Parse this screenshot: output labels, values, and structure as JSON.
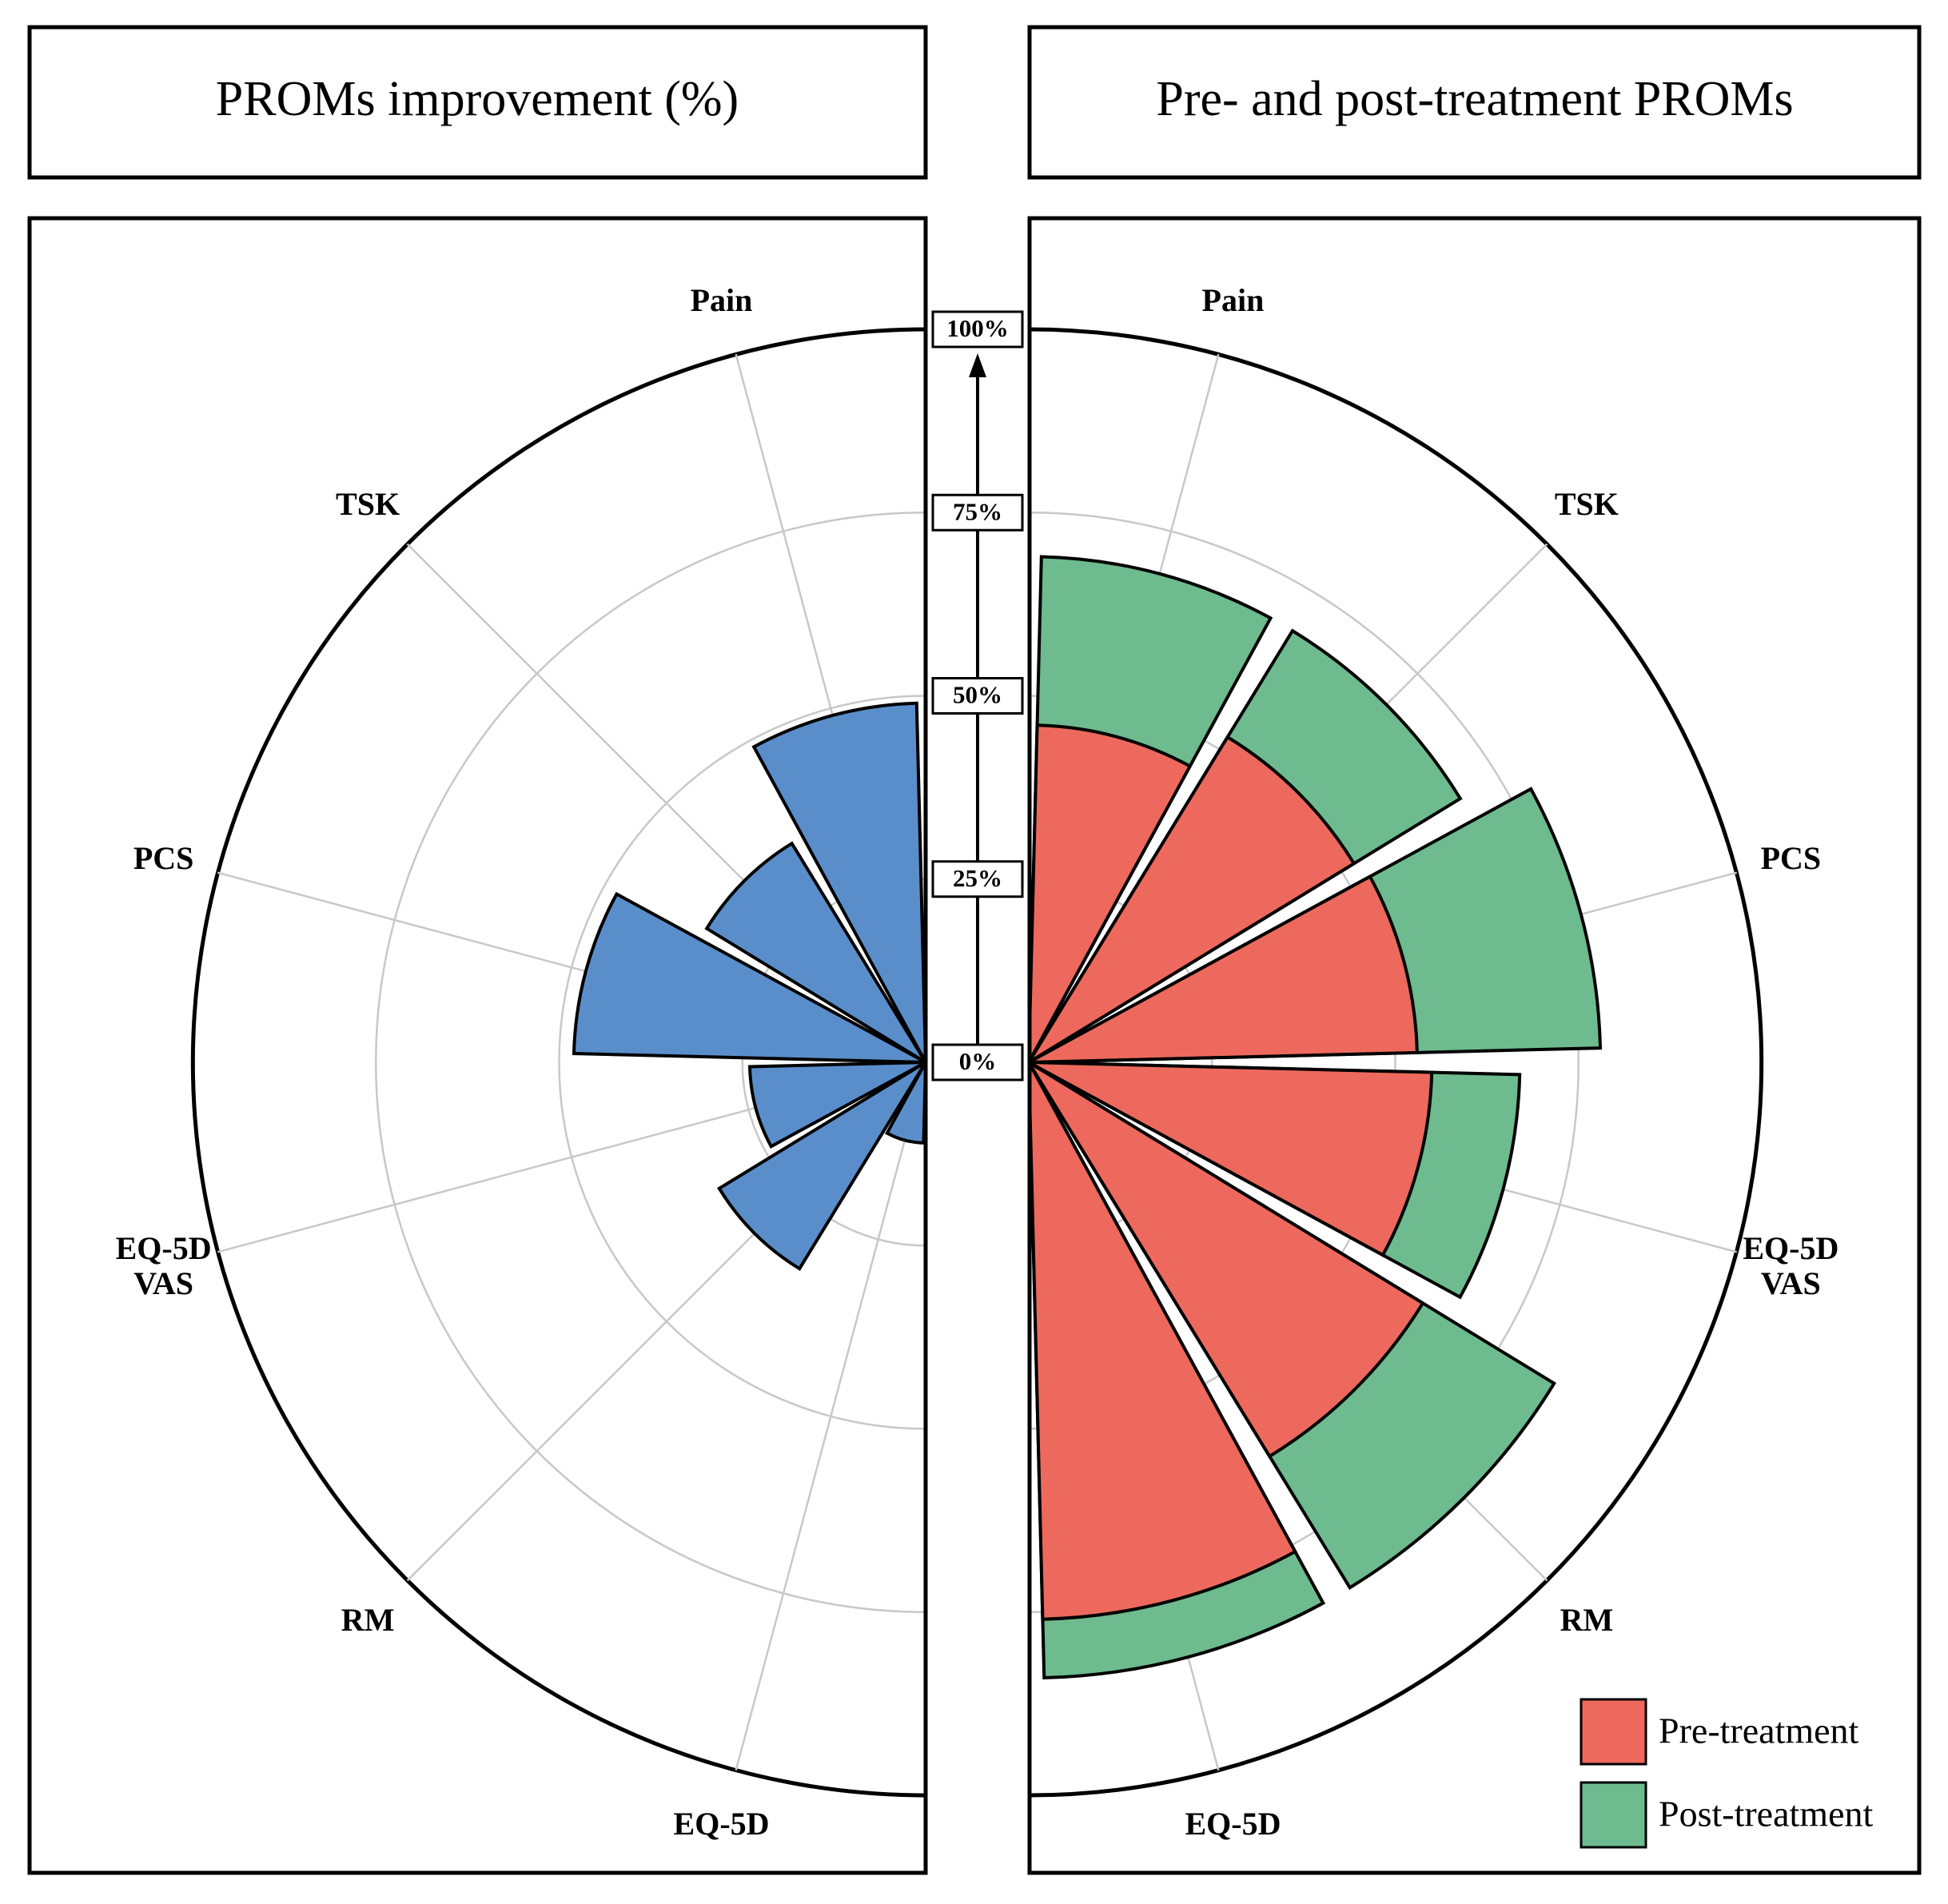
{
  "chart_data": [
    {
      "type": "polar_bar",
      "title": "PROMs improvement (%)",
      "categories": [
        "Pain",
        "TSK",
        "PCS",
        "EQ-5D VAS",
        "RM",
        "EQ-5D"
      ],
      "series": [
        {
          "name": null,
          "color": "#5a8ecb",
          "values": [
            49,
            35,
            48,
            24,
            33,
            11
          ]
        }
      ],
      "rlim": [
        0,
        100
      ],
      "rticks": [
        {
          "value": 0,
          "label": "0%"
        },
        {
          "value": 25,
          "label": "25%"
        },
        {
          "value": 50,
          "label": "50%"
        },
        {
          "value": 75,
          "label": "75%"
        },
        {
          "value": 100,
          "label": "100%"
        }
      ],
      "side": "left",
      "grid": true
    },
    {
      "type": "polar_bar",
      "title": "Pre- and post-treatment PROMs",
      "categories": [
        "Pain",
        "TSK",
        "PCS",
        "EQ-5D VAS",
        "RM",
        "EQ-5D"
      ],
      "series": [
        {
          "name": "Pre-treatment",
          "color": "#ee695d",
          "values": [
            46,
            52,
            53,
            55,
            63,
            76
          ]
        },
        {
          "name": "Post-treatment",
          "color": "#6dbb8e",
          "values": [
            69,
            69,
            78,
            67,
            84,
            84
          ]
        }
      ],
      "rlim": [
        0,
        100
      ],
      "rticks": [
        {
          "value": 0,
          "label": "0%"
        },
        {
          "value": 25,
          "label": "25%"
        },
        {
          "value": 50,
          "label": "50%"
        },
        {
          "value": 75,
          "label": "75%"
        },
        {
          "value": 100,
          "label": "100%"
        }
      ],
      "side": "right",
      "grid": true,
      "legend": "lower right"
    }
  ]
}
